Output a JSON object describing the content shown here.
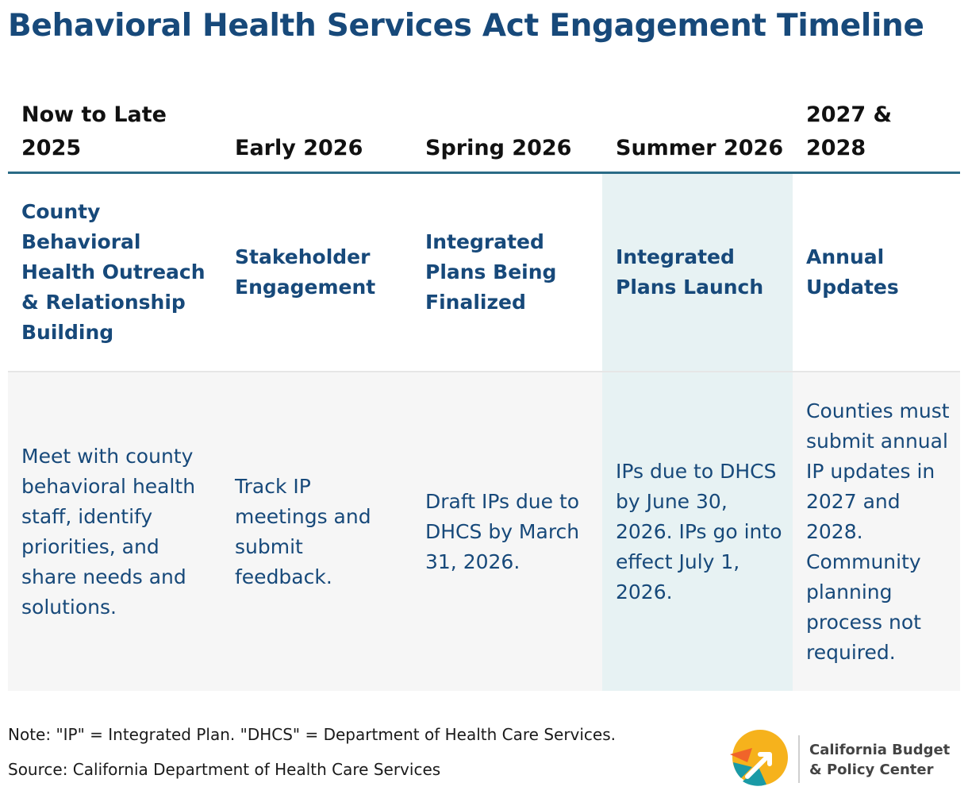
{
  "title": "Behavioral Health Services Act Engagement Timeline",
  "columns": [
    {
      "period": "Now to Late 2025",
      "phase": "County Behavioral Health Outreach & Relationship Building",
      "description": "Meet with county behavioral health staff, identify priorities, and share needs and solutions."
    },
    {
      "period": "Early 2026",
      "phase": "Stakeholder Engagement",
      "description": "Track IP meetings and submit feedback."
    },
    {
      "period": "Spring 2026",
      "phase": "Integrated Plans Being Finalized",
      "description": "Draft IPs due to DHCS by March 31, 2026."
    },
    {
      "period": "Summer 2026",
      "phase": "Integrated Plans Launch",
      "description": "IPs due to DHCS by June 30, 2026. IPs go into effect July 1, 2026."
    },
    {
      "period": "2027 & 2028",
      "phase": "Annual Updates",
      "description": "Counties must submit annual IP updates in 2027 and 2028. Community planning process not required."
    }
  ],
  "highlight_color": "#e7f2f3",
  "note": "Note: \"IP\" = Integrated Plan. \"DHCS\" = Department of Health Care Services.",
  "source": "Source: California Department of Health Care Services",
  "org": {
    "line1": "California Budget",
    "line2": "& Policy Center"
  },
  "colors": {
    "title": "#17497a",
    "rule": "#2a6b86",
    "logo_orange": "#f0642a",
    "logo_yellow": "#f6b21c",
    "logo_teal": "#1a9aa6"
  }
}
